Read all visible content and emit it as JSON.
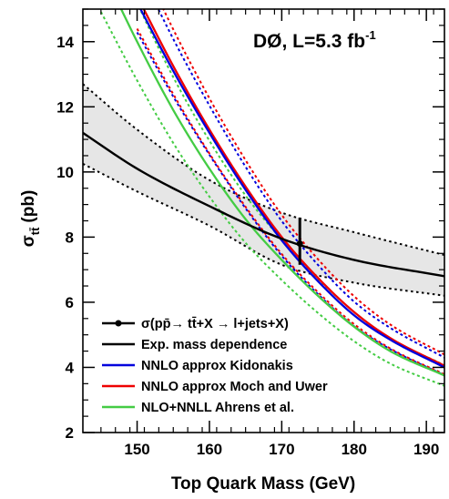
{
  "chart_data": {
    "type": "line",
    "title": "DØ, L=5.3 fb",
    "title_superscript": "-1",
    "xlabel": "Top Quark Mass (GeV)",
    "ylabel_main": "σ",
    "ylabel_sub": "tt̄",
    "ylabel_unit": "(pb)",
    "xlim": [
      142.5,
      192.5
    ],
    "ylim": [
      2,
      15
    ],
    "xticks": [
      "150",
      "160",
      "170",
      "180",
      "190"
    ],
    "yticks": [
      "2",
      "4",
      "6",
      "8",
      "10",
      "12",
      "14"
    ],
    "grid": false,
    "legend_position": "bottom-left",
    "measurement": {
      "legend_label": "σ(pp̄→ tt̄+X → l+jets+X)",
      "x": 172.5,
      "y": 7.8,
      "y_err": [
        7.15,
        8.6
      ],
      "color": "#000000"
    },
    "series": [
      {
        "name": "Exp. mass dependence",
        "color": "#000000",
        "x": [
          142.5,
          150,
          160,
          170,
          180,
          192.5
        ],
        "y": [
          11.2,
          10.1,
          8.95,
          7.95,
          7.3,
          6.8
        ],
        "band_upper": [
          12.7,
          11.3,
          9.75,
          8.75,
          8.15,
          7.45
        ],
        "band_lower": [
          10.25,
          9.4,
          8.35,
          7.15,
          6.6,
          6.2
        ],
        "band_fill": "#e6e6e6"
      },
      {
        "name": "NNLO approx Kidonakis",
        "color": "#0000dd",
        "x": [
          150,
          155,
          160,
          165,
          170,
          175,
          180,
          185,
          192.5
        ],
        "y": [
          15.2,
          13.1,
          11.2,
          9.45,
          7.9,
          6.65,
          5.6,
          4.85,
          4.0
        ],
        "dashed_offsets": [
          0.075,
          0.06
        ]
      },
      {
        "name": "NNLO approx Moch and Uwer",
        "color": "#ee0000",
        "x": [
          150,
          155,
          160,
          165,
          170,
          175,
          180,
          185,
          192.5
        ],
        "y": [
          15.4,
          13.25,
          11.3,
          9.55,
          8.0,
          6.75,
          5.7,
          4.9,
          4.05
        ],
        "dashed_offsets": [
          0.085,
          0.065
        ]
      },
      {
        "name": "NLO+NNLL Ahrens et al.",
        "color": "#44cc44",
        "x": [
          145,
          150,
          155,
          160,
          165,
          170,
          175,
          180,
          185,
          192.5
        ],
        "y": [
          16.3,
          14.0,
          11.9,
          10.1,
          8.55,
          7.3,
          6.2,
          5.25,
          4.5,
          3.75
        ],
        "dashed_offsets": [
          0.085,
          0.085
        ]
      }
    ]
  }
}
